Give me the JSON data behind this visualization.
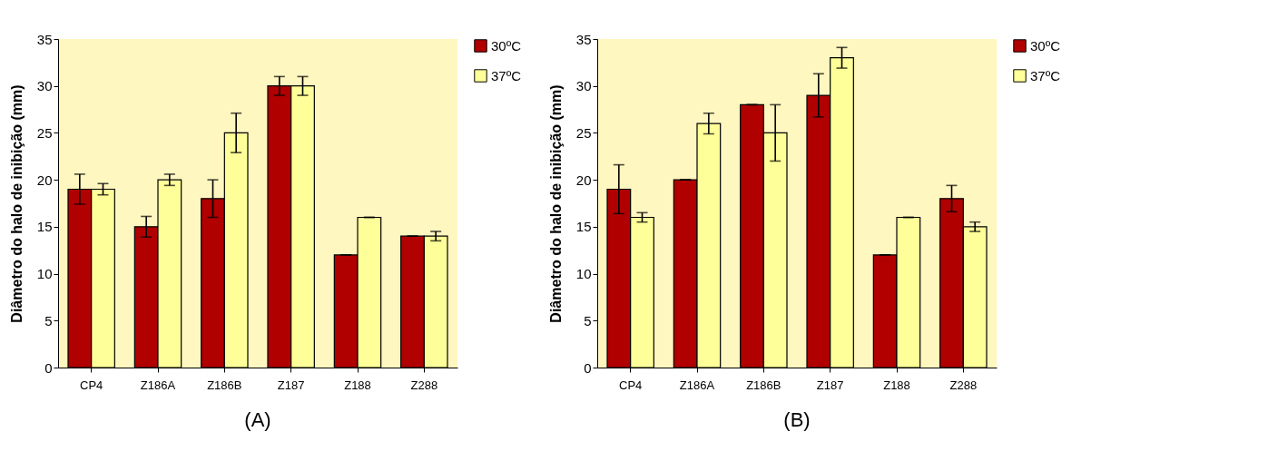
{
  "chart_data": [
    {
      "type": "bar",
      "title": "(A)",
      "ylabel": "Diâmetro do halo de inibição (mm)",
      "categories": [
        "CP4",
        "Z186A",
        "Z186B",
        "Z187",
        "Z188",
        "Z288"
      ],
      "ylim": [
        0,
        35
      ],
      "yticks": [
        0,
        5,
        10,
        15,
        20,
        25,
        30,
        35
      ],
      "legend": "right",
      "grid": false,
      "series": [
        {
          "name": "30ºC",
          "color": "#b00000",
          "values": [
            19,
            15,
            18,
            30,
            12,
            14
          ],
          "errors": [
            1.6,
            1.1,
            2,
            1,
            0,
            0
          ]
        },
        {
          "name": "37ºC",
          "color": "#ffff99",
          "values": [
            19,
            20,
            25,
            30,
            16,
            14
          ],
          "errors": [
            0.6,
            0.6,
            2.1,
            1,
            0,
            0.5
          ]
        }
      ]
    },
    {
      "type": "bar",
      "title": "(B)",
      "ylabel": "Diâmetro do halo de inibição (mm)",
      "categories": [
        "CP4",
        "Z186A",
        "Z186B",
        "Z187",
        "Z188",
        "Z288"
      ],
      "ylim": [
        0,
        35
      ],
      "yticks": [
        0,
        5,
        10,
        15,
        20,
        25,
        30,
        35
      ],
      "legend": "right",
      "grid": false,
      "series": [
        {
          "name": "30ºC",
          "color": "#b00000",
          "values": [
            19,
            20,
            28,
            29,
            12,
            18
          ],
          "errors": [
            2.6,
            0,
            0,
            2.3,
            0,
            1.4
          ]
        },
        {
          "name": "37ºC",
          "color": "#ffff99",
          "values": [
            16,
            26,
            25,
            33,
            16,
            15
          ],
          "errors": [
            0.5,
            1.1,
            3,
            1.1,
            0,
            0.5
          ]
        }
      ]
    }
  ]
}
